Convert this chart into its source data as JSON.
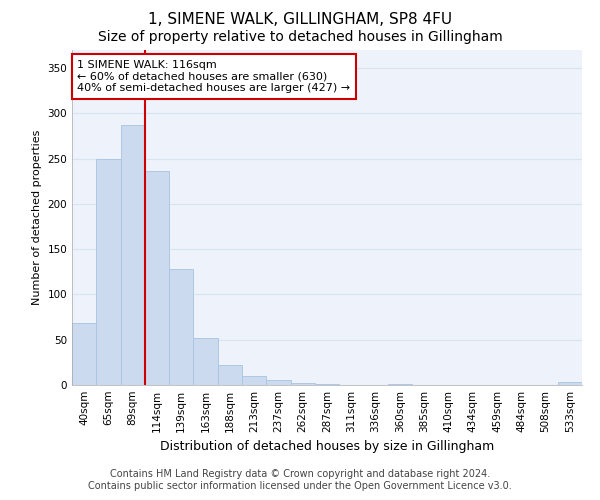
{
  "title": "1, SIMENE WALK, GILLINGHAM, SP8 4FU",
  "subtitle": "Size of property relative to detached houses in Gillingham",
  "xlabel": "Distribution of detached houses by size in Gillingham",
  "ylabel": "Number of detached properties",
  "categories": [
    "40sqm",
    "65sqm",
    "89sqm",
    "114sqm",
    "139sqm",
    "163sqm",
    "188sqm",
    "213sqm",
    "237sqm",
    "262sqm",
    "287sqm",
    "311sqm",
    "336sqm",
    "360sqm",
    "385sqm",
    "410sqm",
    "434sqm",
    "459sqm",
    "484sqm",
    "508sqm",
    "533sqm"
  ],
  "values": [
    68,
    250,
    287,
    236,
    128,
    52,
    22,
    10,
    5,
    2,
    1,
    0,
    0,
    1,
    0,
    0,
    0,
    0,
    0,
    0,
    3
  ],
  "bar_color": "#ccdaf0",
  "bar_edge_color": "#a8c4e0",
  "vline_x_index": 3,
  "vline_color": "#cc0000",
  "annotation_text": "1 SIMENE WALK: 116sqm\n← 60% of detached houses are smaller (630)\n40% of semi-detached houses are larger (427) →",
  "annotation_box_color": "#ffffff",
  "annotation_box_edge_color": "#cc0000",
  "ylim": [
    0,
    370
  ],
  "yticks": [
    0,
    50,
    100,
    150,
    200,
    250,
    300,
    350
  ],
  "footer_line1": "Contains HM Land Registry data © Crown copyright and database right 2024.",
  "footer_line2": "Contains public sector information licensed under the Open Government Licence v3.0.",
  "fig_background_color": "#ffffff",
  "plot_background_color": "#eef2fa",
  "grid_color": "#d8e4f0",
  "title_fontsize": 11,
  "subtitle_fontsize": 10,
  "xlabel_fontsize": 9,
  "ylabel_fontsize": 8,
  "tick_fontsize": 7.5,
  "annotation_fontsize": 8,
  "footer_fontsize": 7
}
